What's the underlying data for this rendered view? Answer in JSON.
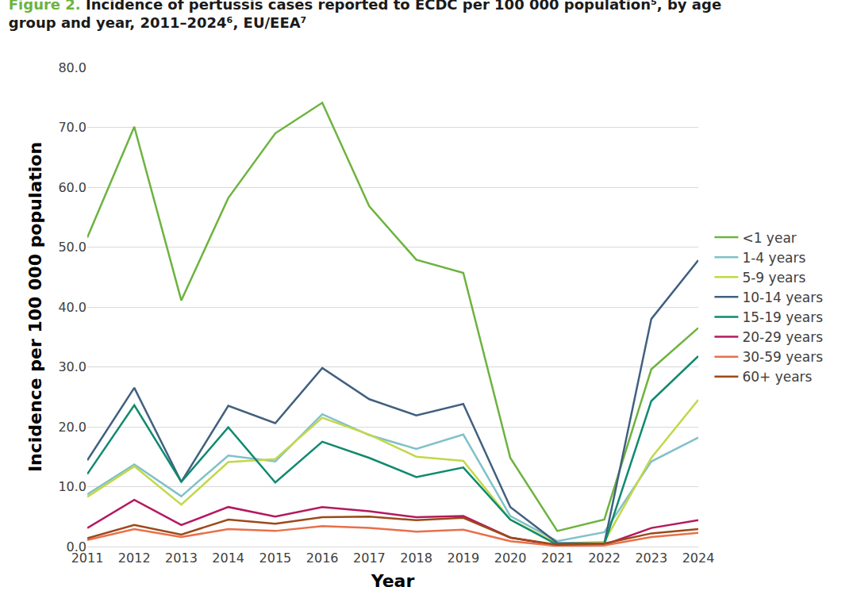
{
  "chart_data": {
    "type": "line",
    "title": "Figure 2. Incidence of pertussis cases reported to ECDC per 100 000 population⁵, by age group and year, 2011–2024⁶, EU/EEA⁷",
    "x_label": "Year",
    "y_label": "Incidence per 100 000 population",
    "categories": [
      "2011",
      "2012",
      "2013",
      "2014",
      "2015",
      "2016",
      "2017",
      "2018",
      "2019",
      "2020",
      "2021",
      "2022",
      "2023",
      "2024"
    ],
    "series": [
      {
        "name": "<1 year",
        "color": "#6db33f",
        "values": [
          51.6,
          70.1,
          41.1,
          58.2,
          69.0,
          74.1,
          56.8,
          47.9,
          45.7,
          14.8,
          2.6,
          4.5,
          29.6,
          36.5
        ]
      },
      {
        "name": "1-4 years",
        "color": "#80c1c8",
        "values": [
          8.7,
          13.7,
          8.4,
          15.2,
          14.2,
          22.1,
          18.6,
          16.3,
          18.7,
          5.1,
          0.9,
          2.4,
          14.2,
          18.2
        ]
      },
      {
        "name": "5-9 years",
        "color": "#c2d84a",
        "values": [
          8.3,
          13.4,
          7.0,
          14.1,
          14.6,
          21.5,
          18.7,
          15.0,
          14.3,
          4.5,
          0.5,
          0.8,
          14.8,
          24.5
        ]
      },
      {
        "name": "10-14 years",
        "color": "#41607f",
        "values": [
          14.4,
          26.5,
          10.8,
          23.5,
          20.6,
          29.8,
          24.6,
          21.9,
          23.8,
          6.6,
          0.6,
          0.5,
          38.0,
          47.8
        ]
      },
      {
        "name": "15-19 years",
        "color": "#0f8a6f",
        "values": [
          12.1,
          23.6,
          10.8,
          19.9,
          10.7,
          17.5,
          14.8,
          11.6,
          13.2,
          4.5,
          0.3,
          0.4,
          24.3,
          31.8
        ]
      },
      {
        "name": "20-29 years",
        "color": "#b5195f",
        "values": [
          3.1,
          7.8,
          3.6,
          6.6,
          5.0,
          6.6,
          5.9,
          4.9,
          5.1,
          1.5,
          0.2,
          0.3,
          3.1,
          4.4
        ]
      },
      {
        "name": "30-59 years",
        "color": "#e8704a",
        "values": [
          1.1,
          2.9,
          1.6,
          2.9,
          2.6,
          3.4,
          3.1,
          2.5,
          2.8,
          0.9,
          0.1,
          0.2,
          1.6,
          2.3
        ]
      },
      {
        "name": "60+ years",
        "color": "#9c4a1a",
        "values": [
          1.4,
          3.6,
          2.0,
          4.5,
          3.8,
          4.9,
          5.0,
          4.4,
          4.8,
          1.5,
          0.3,
          0.5,
          2.2,
          2.9
        ]
      }
    ],
    "ylim": [
      0,
      80
    ],
    "yticks": [
      {
        "value": 0,
        "label": "0.0"
      },
      {
        "value": 10,
        "label": "10.0"
      },
      {
        "value": 20,
        "label": "20.0"
      },
      {
        "value": 30,
        "label": "30.0"
      },
      {
        "value": 40,
        "label": "40.0"
      },
      {
        "value": 50,
        "label": "50.0"
      },
      {
        "value": 60,
        "label": "60.0"
      },
      {
        "value": 70,
        "label": "70.0"
      },
      {
        "value": 80,
        "label": "80.0"
      }
    ],
    "grid": true,
    "legend": "right"
  }
}
